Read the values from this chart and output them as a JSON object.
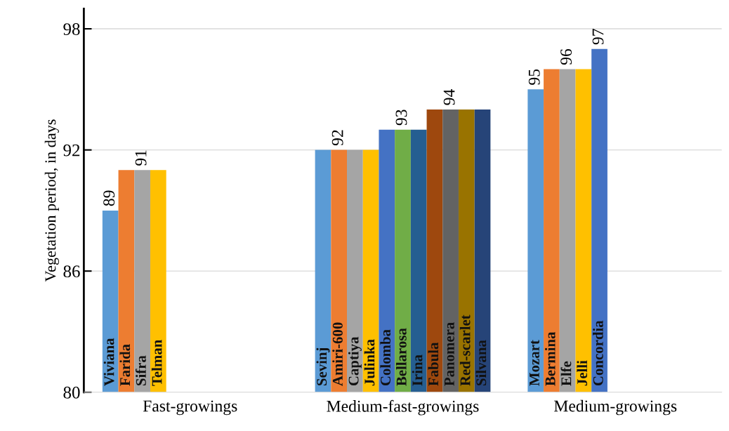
{
  "chart_data": {
    "type": "bar",
    "ylabel": "Vegetation period, in days",
    "categories": [
      "Fast-growings",
      "Medium-fast-growings",
      "Medium-growings"
    ],
    "ylim": [
      80,
      99
    ],
    "yticks": [
      80,
      86,
      92,
      98
    ],
    "grid": "y",
    "legend": false,
    "series": [
      {
        "name": "Viviana",
        "color": "#5b9bd5",
        "values": [
          89,
          null,
          null
        ],
        "value_labels": [
          "89",
          null,
          null
        ]
      },
      {
        "name": "Farida",
        "color": "#ed7d31",
        "values": [
          91,
          null,
          null
        ],
        "value_labels": [
          null,
          null,
          null
        ]
      },
      {
        "name": "Sifra",
        "color": "#a5a5a5",
        "values": [
          91,
          null,
          null
        ],
        "value_labels": [
          "91",
          null,
          null
        ]
      },
      {
        "name": "Telman",
        "color": "#ffc000",
        "values": [
          91,
          null,
          null
        ],
        "value_labels": [
          null,
          null,
          null
        ]
      },
      {
        "name": "Sevinj",
        "color": "#5b9bd5",
        "values": [
          null,
          92,
          null
        ],
        "value_labels": [
          null,
          null,
          null
        ]
      },
      {
        "name": "Amiri-600",
        "color": "#ed7d31",
        "values": [
          null,
          92,
          null
        ],
        "value_labels": [
          null,
          "92",
          null
        ]
      },
      {
        "name": "Captiya",
        "color": "#a5a5a5",
        "values": [
          null,
          92,
          null
        ],
        "value_labels": [
          null,
          null,
          null
        ]
      },
      {
        "name": "Julinka",
        "color": "#ffc000",
        "values": [
          null,
          92,
          null
        ],
        "value_labels": [
          null,
          null,
          null
        ]
      },
      {
        "name": "Colomba",
        "color": "#4472c4",
        "values": [
          null,
          93,
          null
        ],
        "value_labels": [
          null,
          null,
          null
        ]
      },
      {
        "name": "Bellarosa",
        "color": "#70ad47",
        "values": [
          null,
          93,
          null
        ],
        "value_labels": [
          null,
          "93",
          null
        ]
      },
      {
        "name": "Irina",
        "color": "#255e91",
        "values": [
          null,
          93,
          null
        ],
        "value_labels": [
          null,
          null,
          null
        ]
      },
      {
        "name": "Fabula",
        "color": "#9e480e",
        "values": [
          null,
          94,
          null
        ],
        "value_labels": [
          null,
          null,
          null
        ]
      },
      {
        "name": "Panomera",
        "color": "#636363",
        "values": [
          null,
          94,
          null
        ],
        "value_labels": [
          null,
          "94",
          null
        ]
      },
      {
        "name": "Red-scarlet",
        "color": "#997300",
        "values": [
          null,
          94,
          null
        ],
        "value_labels": [
          null,
          null,
          null
        ]
      },
      {
        "name": "Silvana",
        "color": "#264478",
        "values": [
          null,
          94,
          null
        ],
        "value_labels": [
          null,
          null,
          null
        ]
      },
      {
        "name": "Mozart",
        "color": "#5b9bd5",
        "values": [
          null,
          null,
          95
        ],
        "value_labels": [
          null,
          null,
          "95"
        ]
      },
      {
        "name": "Bermina",
        "color": "#ed7d31",
        "values": [
          null,
          null,
          96
        ],
        "value_labels": [
          null,
          null,
          null
        ]
      },
      {
        "name": "Elfe",
        "color": "#a5a5a5",
        "values": [
          null,
          null,
          96
        ],
        "value_labels": [
          null,
          null,
          "96"
        ]
      },
      {
        "name": "Jelli",
        "color": "#ffc000",
        "values": [
          null,
          null,
          96
        ],
        "value_labels": [
          null,
          null,
          null
        ]
      },
      {
        "name": "Concordia",
        "color": "#4472c4",
        "values": [
          null,
          null,
          97
        ],
        "value_labels": [
          null,
          null,
          "97"
        ]
      }
    ]
  }
}
